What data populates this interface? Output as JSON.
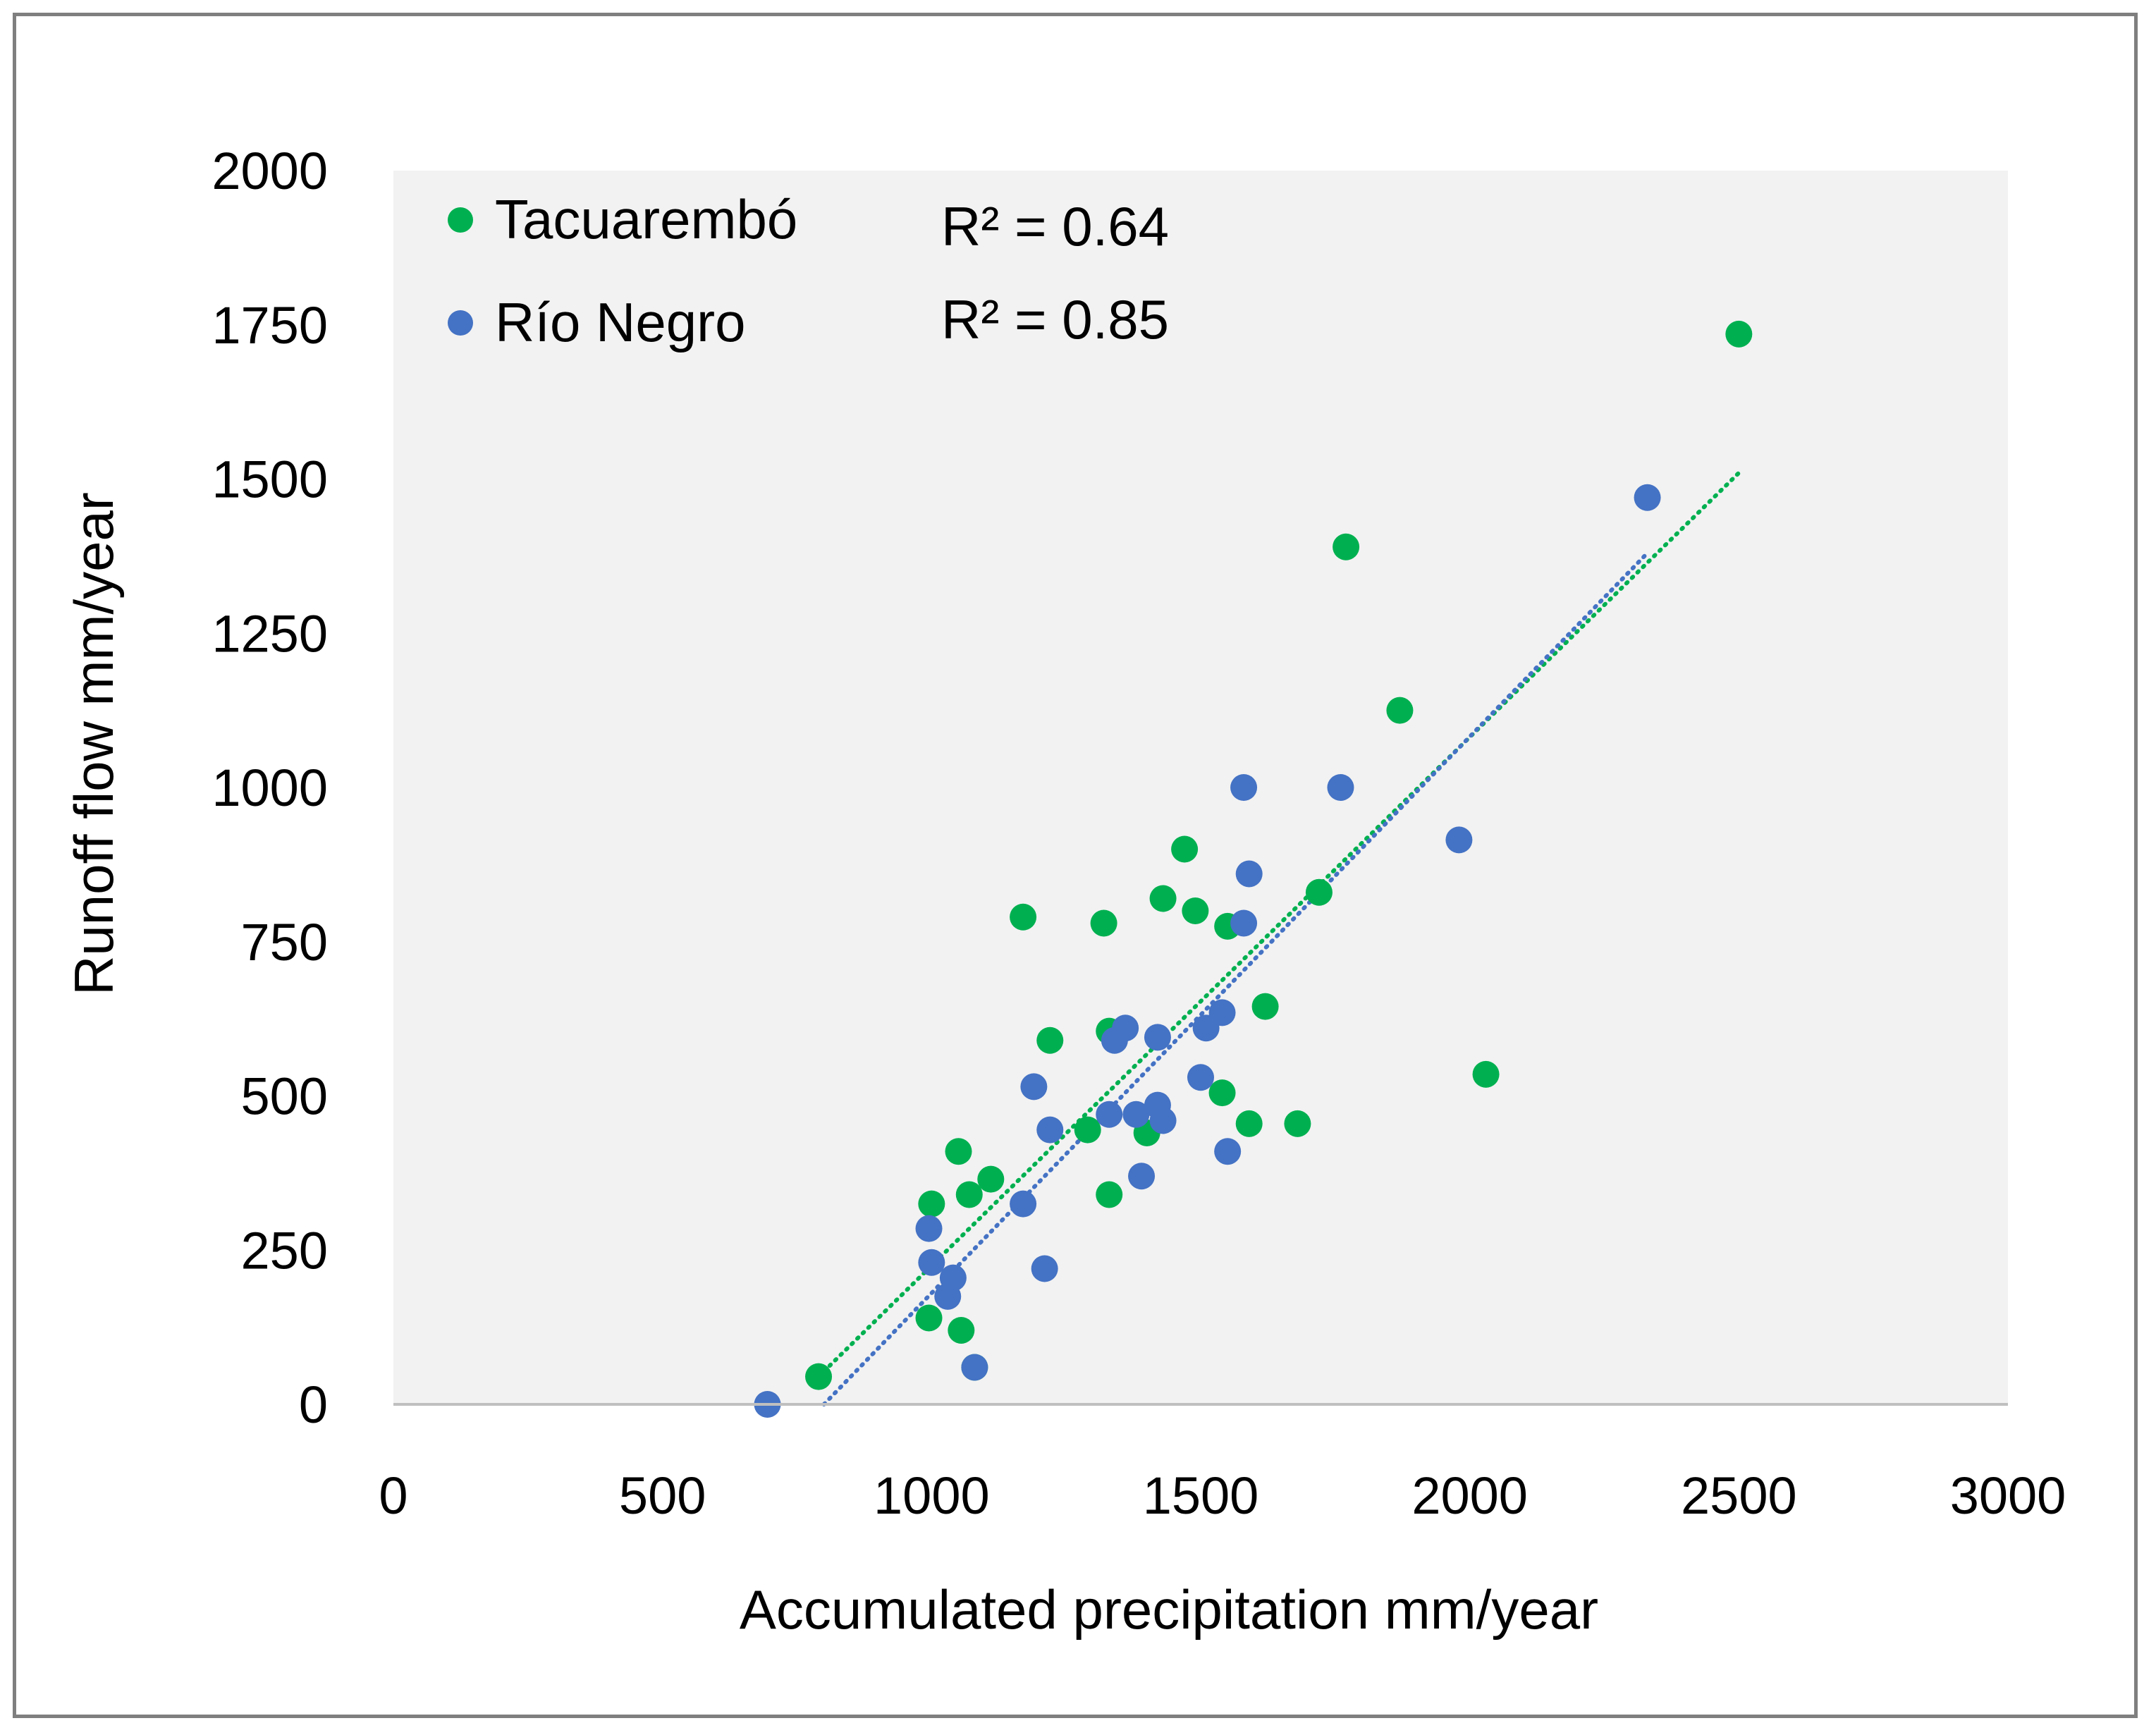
{
  "chart_data": {
    "type": "scatter",
    "xlabel": "Accumulated precipitation mm/year",
    "ylabel": "Runoff flow mm/year",
    "xlim": [
      0,
      3000
    ],
    "ylim": [
      0,
      2000
    ],
    "xticks": [
      "0",
      "500",
      "1000",
      "1500",
      "2000",
      "2500",
      "3000"
    ],
    "yticks": [
      "0",
      "250",
      "500",
      "750",
      "1000",
      "1250",
      "1500",
      "1750",
      "2000"
    ],
    "legend_position": "top-left",
    "series": [
      {
        "name": "Tacuarembó",
        "color": "#00b050",
        "r2_label": "R² = 0.64",
        "trendline": {
          "x": [
            790,
            2500
          ],
          "y": [
            45,
            1510
          ]
        },
        "points": [
          [
            790,
            45
          ],
          [
            995,
            140
          ],
          [
            1000,
            325
          ],
          [
            1050,
            410
          ],
          [
            1055,
            120
          ],
          [
            1070,
            340
          ],
          [
            1080,
            60
          ],
          [
            1110,
            365
          ],
          [
            1170,
            790
          ],
          [
            1220,
            590
          ],
          [
            1290,
            445
          ],
          [
            1320,
            780
          ],
          [
            1330,
            605
          ],
          [
            1330,
            340
          ],
          [
            1400,
            440
          ],
          [
            1430,
            820
          ],
          [
            1470,
            900
          ],
          [
            1490,
            800
          ],
          [
            1540,
            505
          ],
          [
            1550,
            775
          ],
          [
            1590,
            455
          ],
          [
            1620,
            645
          ],
          [
            1680,
            455
          ],
          [
            1720,
            830
          ],
          [
            1770,
            1390
          ],
          [
            1870,
            1125
          ],
          [
            2030,
            535
          ],
          [
            2500,
            1735
          ]
        ]
      },
      {
        "name": "Río Negro",
        "color": "#4472c4",
        "r2_label": "R² = 0.85",
        "trendline": {
          "x": [
            800,
            2330
          ],
          "y": [
            0,
            1380
          ]
        },
        "points": [
          [
            695,
            0
          ],
          [
            995,
            285
          ],
          [
            1000,
            230
          ],
          [
            1030,
            175
          ],
          [
            1040,
            205
          ],
          [
            1080,
            60
          ],
          [
            1170,
            325
          ],
          [
            1190,
            515
          ],
          [
            1210,
            220
          ],
          [
            1220,
            445
          ],
          [
            1330,
            470
          ],
          [
            1340,
            590
          ],
          [
            1360,
            610
          ],
          [
            1380,
            470
          ],
          [
            1390,
            370
          ],
          [
            1420,
            595
          ],
          [
            1420,
            485
          ],
          [
            1430,
            460
          ],
          [
            1500,
            530
          ],
          [
            1510,
            610
          ],
          [
            1540,
            635
          ],
          [
            1550,
            410
          ],
          [
            1580,
            1000
          ],
          [
            1580,
            780
          ],
          [
            1590,
            860
          ],
          [
            1760,
            1000
          ],
          [
            1980,
            915
          ],
          [
            2330,
            1470
          ]
        ]
      }
    ]
  }
}
